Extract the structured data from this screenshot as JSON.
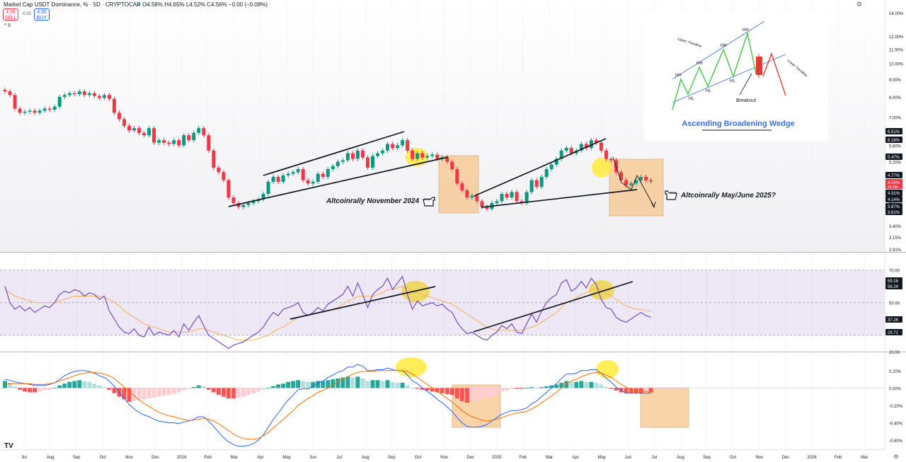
{
  "header": {
    "title": "Market Cap USDT Dominance, %  · 5D · CRYPTOCAP",
    "ohlc": "O4.58% H4.65% L4.52% C4.56% −0.00 (−0.08%)",
    "sell_price": "4.56",
    "sell_label": "SELL",
    "spread": "0.00",
    "buy_price": "4.56",
    "buy_label": "BUY",
    "collapse": "^ 6"
  },
  "chart_data": [
    {
      "type": "candlestick",
      "title": "Market Cap USDT Dominance, %",
      "xlabel": "",
      "ylabel": "",
      "ylim": [
        2.91,
        14.0
      ],
      "scale": "log",
      "price_ticks": [
        "14.00%",
        "12.00%",
        "11.00%",
        "10.00%",
        "9.00%",
        "8.00%",
        "7.00%",
        "6.00%",
        "5.80%",
        "5.20%",
        "4.60%",
        "4.00%",
        "3.40%",
        "3.15%",
        "2.91%"
      ],
      "price_badges": [
        {
          "label": "6.51%",
          "color": "#131722"
        },
        {
          "label": "6.16%",
          "color": "#131722"
        },
        {
          "label": "5.47%",
          "color": "#131722"
        },
        {
          "label": "4.77%",
          "color": "#131722"
        },
        {
          "label": "4.56%",
          "sub": "24:16h",
          "color": "#f23645"
        },
        {
          "label": "4.31%",
          "color": "#131722"
        },
        {
          "label": "4.14%",
          "color": "#131722"
        },
        {
          "label": "3.87%",
          "color": "#131722"
        },
        {
          "label": "3.81%",
          "color": "#131722"
        }
      ],
      "time_labels": [
        "Jul",
        "Aug",
        "Sep",
        "Oct",
        "Nov",
        "Dec",
        "2024",
        "Feb",
        "Mar",
        "Apr",
        "May",
        "Jun",
        "Jul",
        "Aug",
        "Sep",
        "Oct",
        "Nov",
        "Dec",
        "2025",
        "Feb",
        "Mar",
        "Apr",
        "May",
        "Jun",
        "Jul",
        "Aug",
        "Sep",
        "Oct",
        "Nov",
        "Dec",
        "2026",
        "Feb",
        "Mar"
      ],
      "close": [
        8.3,
        8.1,
        7.4,
        7.2,
        7.25,
        7.3,
        7.2,
        7.3,
        7.4,
        7.35,
        7.5,
        8.0,
        8.1,
        8.2,
        8.15,
        8.3,
        8.1,
        8.2,
        8.05,
        7.95,
        8.1,
        7.9,
        7.2,
        6.9,
        6.6,
        6.4,
        6.5,
        6.3,
        6.2,
        6.5,
        5.9,
        6.0,
        5.9,
        5.85,
        6.0,
        5.8,
        6.2,
        6.0,
        6.3,
        6.5,
        6.2,
        5.6,
        5.0,
        4.85,
        4.6,
        4.1,
        3.95,
        3.85,
        3.9,
        3.95,
        4.0,
        4.05,
        4.2,
        4.55,
        4.7,
        4.55,
        4.75,
        4.8,
        4.85,
        4.95,
        4.6,
        4.5,
        4.55,
        4.8,
        4.7,
        4.95,
        5.05,
        5.2,
        5.25,
        5.5,
        5.3,
        5.6,
        5.35,
        5.0,
        5.4,
        5.5,
        5.6,
        5.85,
        5.7,
        5.8,
        6.0,
        5.6,
        5.3,
        5.5,
        5.35,
        5.4,
        5.45,
        5.3,
        5.35,
        5.2,
        4.95,
        4.5,
        4.3,
        4.1,
        4.15,
        4.0,
        3.85,
        3.8,
        3.95,
        4.0,
        4.2,
        4.1,
        4.25,
        4.0,
        3.95,
        4.25,
        4.6,
        4.4,
        4.7,
        4.95,
        5.1,
        5.3,
        5.6,
        5.7,
        5.5,
        5.6,
        5.85,
        5.7,
        6.0,
        5.9,
        5.6,
        5.3,
        5.25,
        4.85,
        4.6,
        4.45,
        4.5,
        4.6,
        4.7,
        4.6,
        4.56
      ],
      "annotations": {
        "left_label": "Altcoinrally November 2024",
        "right_label": "Altcoinrally May/June 2025?",
        "pointer_icon": "hand-pointer-icon"
      }
    },
    {
      "type": "line",
      "title": "RSI",
      "ylim": [
        20,
        75
      ],
      "ticks": [
        "70.00",
        "60.00",
        "50.00",
        "40.00",
        "20.00"
      ],
      "badges": [
        "59.16",
        "56.24",
        "37.26",
        "29.72"
      ],
      "series": [
        {
          "values": [
            60,
            50,
            46,
            48,
            45,
            47,
            44,
            46,
            48,
            47,
            50,
            55,
            57,
            56,
            58,
            57,
            54,
            56,
            55,
            52,
            54,
            45,
            40,
            35,
            32,
            31,
            34,
            30,
            29,
            35,
            30,
            32,
            31,
            30,
            33,
            29,
            37,
            33,
            38,
            42,
            36,
            30,
            28,
            26,
            24,
            22,
            24,
            25,
            26,
            28,
            30,
            32,
            35,
            40,
            44,
            42,
            46,
            47,
            48,
            50,
            44,
            42,
            44,
            47,
            45,
            49,
            51,
            53,
            55,
            60,
            54,
            62,
            55,
            47,
            55,
            58,
            60,
            65,
            58,
            62,
            66,
            55,
            46,
            51,
            48,
            49,
            50,
            48,
            49,
            46,
            44,
            38,
            34,
            31,
            32,
            30,
            28,
            27,
            30,
            32,
            36,
            34,
            37,
            32,
            31,
            37,
            43,
            38,
            45,
            50,
            53,
            55,
            62,
            64,
            57,
            59,
            63,
            59,
            65,
            61,
            52,
            47,
            46,
            41,
            39,
            38,
            40,
            42,
            44,
            42,
            41
          ]
        },
        {
          "values": [
            58,
            56,
            54,
            53,
            52,
            51,
            50,
            50,
            50,
            50,
            50,
            51,
            52,
            53,
            54,
            54,
            54,
            54,
            54,
            54,
            53,
            52,
            50,
            48,
            45,
            43,
            41,
            39,
            37,
            36,
            35,
            34,
            33,
            32,
            32,
            32,
            32,
            32,
            33,
            34,
            34,
            33,
            32,
            31,
            30,
            29,
            28,
            27,
            27,
            27,
            27,
            28,
            29,
            30,
            32,
            34,
            35,
            37,
            39,
            41,
            42,
            42,
            43,
            44,
            44,
            45,
            46,
            47,
            49,
            51,
            52,
            54,
            54,
            54,
            54,
            55,
            56,
            58,
            58,
            59,
            60,
            59,
            57,
            56,
            55,
            54,
            53,
            52,
            51,
            50,
            49,
            47,
            45,
            43,
            41,
            39,
            37,
            35,
            34,
            33,
            33,
            33,
            33,
            33,
            33,
            34,
            35,
            36,
            38,
            40,
            42,
            44,
            47,
            50,
            51,
            53,
            55,
            56,
            58,
            59,
            58,
            56,
            54,
            52,
            50,
            48,
            47,
            46,
            46,
            45,
            45
          ]
        }
      ]
    },
    {
      "type": "bar",
      "title": "MACD",
      "ylim": [
        -0.68,
        0.32
      ],
      "ticks": [
        "0.20%",
        "0.00%",
        "-0.20%",
        "-0.40%",
        "-0.60%"
      ],
      "histogram": [
        0.08,
        0.06,
        0.02,
        -0.02,
        -0.04,
        -0.05,
        -0.05,
        -0.04,
        -0.03,
        -0.02,
        0.0,
        0.03,
        0.05,
        0.07,
        0.08,
        0.09,
        0.08,
        0.07,
        0.05,
        0.03,
        0.01,
        -0.02,
        -0.06,
        -0.1,
        -0.13,
        -0.16,
        -0.15,
        -0.14,
        -0.13,
        -0.12,
        -0.11,
        -0.1,
        -0.09,
        -0.08,
        -0.07,
        -0.05,
        -0.03,
        -0.01,
        0.01,
        0.03,
        0.02,
        -0.02,
        -0.05,
        -0.08,
        -0.1,
        -0.12,
        -0.12,
        -0.11,
        -0.1,
        -0.08,
        -0.06,
        -0.04,
        -0.02,
        0.0,
        0.02,
        0.04,
        0.05,
        0.07,
        0.08,
        0.09,
        0.08,
        0.07,
        0.07,
        0.08,
        0.08,
        0.09,
        0.1,
        0.11,
        0.12,
        0.13,
        0.12,
        0.13,
        0.11,
        0.08,
        0.09,
        0.09,
        0.08,
        0.09,
        0.07,
        0.06,
        0.06,
        0.03,
        0.0,
        -0.01,
        -0.02,
        -0.03,
        -0.04,
        -0.05,
        -0.06,
        -0.07,
        -0.08,
        -0.12,
        -0.15,
        -0.17,
        -0.16,
        -0.15,
        -0.14,
        -0.12,
        -0.09,
        -0.07,
        -0.04,
        -0.03,
        -0.01,
        -0.01,
        -0.01,
        0.0,
        0.01,
        0.0,
        0.01,
        0.02,
        0.03,
        0.04,
        0.06,
        0.08,
        0.07,
        0.07,
        0.08,
        0.07,
        0.07,
        0.06,
        0.04,
        0.01,
        -0.01,
        -0.03,
        -0.05,
        -0.06,
        -0.06,
        -0.06,
        -0.06,
        -0.05,
        -0.05
      ],
      "series": [
        {
          "values": [
            0.1,
            0.09,
            0.07,
            0.06,
            0.05,
            0.04,
            0.03,
            0.03,
            0.03,
            0.04,
            0.06,
            0.1,
            0.14,
            0.17,
            0.19,
            0.2,
            0.2,
            0.19,
            0.17,
            0.14,
            0.12,
            0.08,
            0.02,
            -0.05,
            -0.12,
            -0.19,
            -0.24,
            -0.28,
            -0.31,
            -0.33,
            -0.36,
            -0.38,
            -0.39,
            -0.4,
            -0.4,
            -0.41,
            -0.39,
            -0.38,
            -0.36,
            -0.33,
            -0.33,
            -0.38,
            -0.44,
            -0.51,
            -0.57,
            -0.62,
            -0.65,
            -0.67,
            -0.67,
            -0.66,
            -0.64,
            -0.6,
            -0.54,
            -0.45,
            -0.36,
            -0.29,
            -0.21,
            -0.14,
            -0.08,
            -0.02,
            -0.01,
            -0.01,
            0.02,
            0.06,
            0.08,
            0.12,
            0.15,
            0.18,
            0.2,
            0.24,
            0.24,
            0.27,
            0.25,
            0.2,
            0.2,
            0.21,
            0.21,
            0.23,
            0.21,
            0.2,
            0.2,
            0.15,
            0.08,
            0.05,
            0.0,
            -0.04,
            -0.08,
            -0.13,
            -0.17,
            -0.22,
            -0.27,
            -0.34,
            -0.4,
            -0.44,
            -0.45,
            -0.45,
            -0.44,
            -0.42,
            -0.38,
            -0.34,
            -0.3,
            -0.28,
            -0.26,
            -0.26,
            -0.25,
            -0.23,
            -0.18,
            -0.15,
            -0.1,
            -0.05,
            0.0,
            0.05,
            0.11,
            0.16,
            0.16,
            0.17,
            0.2,
            0.2,
            0.21,
            0.21,
            0.17,
            0.11,
            0.07,
            0.01,
            -0.03,
            -0.06,
            -0.06,
            -0.06,
            -0.06,
            -0.06,
            -0.06
          ]
        },
        {
          "values": [
            0.04,
            0.05,
            0.05,
            0.05,
            0.05,
            0.05,
            0.04,
            0.04,
            0.04,
            0.05,
            0.06,
            0.08,
            0.1,
            0.12,
            0.14,
            0.16,
            0.17,
            0.18,
            0.18,
            0.17,
            0.16,
            0.14,
            0.11,
            0.06,
            0.01,
            -0.04,
            -0.09,
            -0.14,
            -0.18,
            -0.21,
            -0.25,
            -0.28,
            -0.3,
            -0.32,
            -0.33,
            -0.35,
            -0.36,
            -0.37,
            -0.37,
            -0.36,
            -0.35,
            -0.36,
            -0.38,
            -0.41,
            -0.45,
            -0.49,
            -0.53,
            -0.56,
            -0.58,
            -0.59,
            -0.59,
            -0.58,
            -0.55,
            -0.51,
            -0.46,
            -0.41,
            -0.36,
            -0.31,
            -0.26,
            -0.2,
            -0.16,
            -0.12,
            -0.09,
            -0.05,
            -0.03,
            0.0,
            0.03,
            0.07,
            0.1,
            0.13,
            0.16,
            0.18,
            0.19,
            0.19,
            0.19,
            0.2,
            0.2,
            0.2,
            0.2,
            0.2,
            0.2,
            0.19,
            0.16,
            0.12,
            0.08,
            0.04,
            0.0,
            -0.04,
            -0.08,
            -0.12,
            -0.16,
            -0.21,
            -0.26,
            -0.3,
            -0.33,
            -0.35,
            -0.37,
            -0.38,
            -0.37,
            -0.36,
            -0.34,
            -0.32,
            -0.3,
            -0.29,
            -0.28,
            -0.27,
            -0.24,
            -0.21,
            -0.17,
            -0.13,
            -0.09,
            -0.05,
            0.0,
            0.05,
            0.08,
            0.1,
            0.13,
            0.15,
            0.17,
            0.18,
            0.17,
            0.15,
            0.12,
            0.08,
            0.04,
            0.01,
            -0.02,
            -0.03,
            -0.04,
            -0.04,
            -0.05
          ]
        }
      ]
    }
  ],
  "inset": {
    "title": "Ascending Broadening Wedge",
    "labels": {
      "hh1": "HH",
      "hh2": "HH",
      "hh3": "HH",
      "hh4": "HH",
      "hl1": "HL",
      "hl2": "HL",
      "hl3": "HL",
      "breakout": "Breakout",
      "upper": "Upper Trendline",
      "lower": "Lower Trendline"
    }
  },
  "logo": {
    "text": "TV"
  },
  "settings_icon": "gear-icon"
}
